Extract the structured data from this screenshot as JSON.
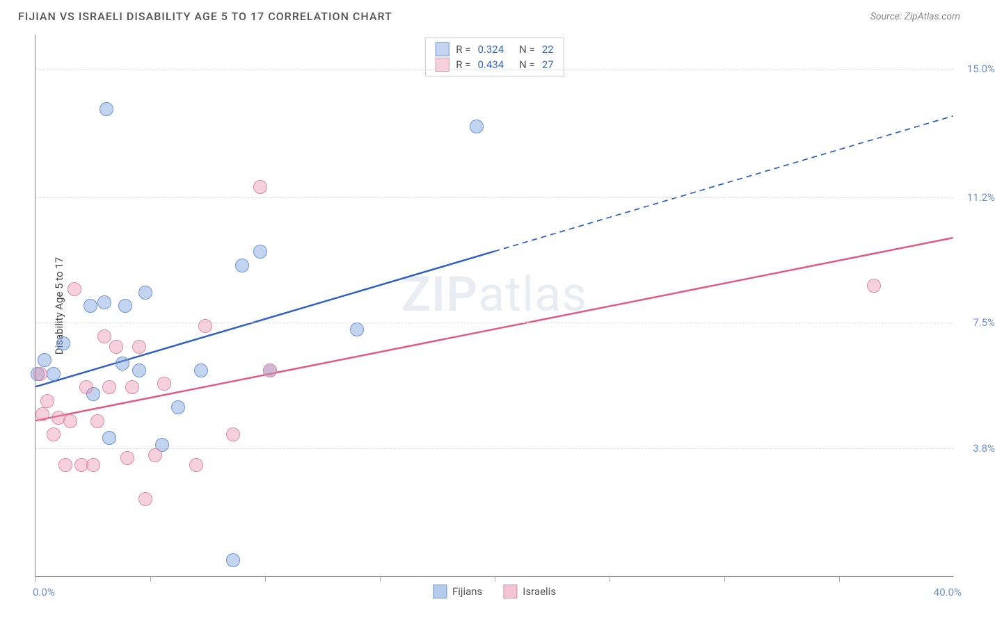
{
  "title": "FIJIAN VS ISRAELI DISABILITY AGE 5 TO 17 CORRELATION CHART",
  "source": "Source: ZipAtlas.com",
  "y_axis_title": "Disability Age 5 to 17",
  "watermark_zip": "ZIP",
  "watermark_atlas": "atlas",
  "chart": {
    "type": "scatter",
    "background_color": "#ffffff",
    "grid_color": "#dddddd",
    "xlim": [
      0,
      40
    ],
    "ylim": [
      0,
      16
    ],
    "x_min_label": "0.0%",
    "x_max_label": "40.0%",
    "x_ticks_pct": [
      0,
      5,
      10,
      15,
      20,
      25,
      30,
      35
    ],
    "y_gridlines": [
      {
        "val": 3.8,
        "label": "3.8%"
      },
      {
        "val": 7.5,
        "label": "7.5%"
      },
      {
        "val": 11.2,
        "label": "11.2%"
      },
      {
        "val": 15.0,
        "label": "15.0%"
      }
    ],
    "axis_label_color": "#6b8fd6",
    "axis_title_color": "#444444",
    "point_radius": 10,
    "series": [
      {
        "name": "Fijians",
        "color_fill": "rgba(120,160,220,0.45)",
        "color_stroke": "#6b93d6",
        "trend_color": "#2f61c4",
        "trend_width": 2.5,
        "R": 0.324,
        "N": 22,
        "trend": {
          "x1": 0,
          "y1": 5.6,
          "x2": 20,
          "y2": 9.6,
          "ext_x2": 40,
          "ext_y2": 13.6
        },
        "points": [
          {
            "x": 0.1,
            "y": 6.0
          },
          {
            "x": 0.4,
            "y": 6.4
          },
          {
            "x": 0.8,
            "y": 6.0
          },
          {
            "x": 1.2,
            "y": 6.9
          },
          {
            "x": 2.5,
            "y": 5.4
          },
          {
            "x": 2.4,
            "y": 8.0
          },
          {
            "x": 3.0,
            "y": 8.1
          },
          {
            "x": 3.1,
            "y": 13.8
          },
          {
            "x": 3.2,
            "y": 4.1
          },
          {
            "x": 3.8,
            "y": 6.3
          },
          {
            "x": 3.9,
            "y": 8.0
          },
          {
            "x": 4.5,
            "y": 6.1
          },
          {
            "x": 4.8,
            "y": 8.4
          },
          {
            "x": 5.5,
            "y": 3.9
          },
          {
            "x": 6.2,
            "y": 5.0
          },
          {
            "x": 7.2,
            "y": 6.1
          },
          {
            "x": 8.6,
            "y": 0.5
          },
          {
            "x": 9.0,
            "y": 9.2
          },
          {
            "x": 9.8,
            "y": 9.6
          },
          {
            "x": 10.2,
            "y": 6.1
          },
          {
            "x": 14.0,
            "y": 7.3
          },
          {
            "x": 19.2,
            "y": 13.3
          }
        ]
      },
      {
        "name": "Israelis",
        "color_fill": "rgba(230,140,170,0.40)",
        "color_stroke": "#e28aa6",
        "trend_color": "#e05a88",
        "trend_width": 2.5,
        "R": 0.434,
        "N": 27,
        "trend": {
          "x1": 0,
          "y1": 4.6,
          "x2": 40,
          "y2": 10.0
        },
        "points": [
          {
            "x": 0.2,
            "y": 6.0
          },
          {
            "x": 0.3,
            "y": 4.8
          },
          {
            "x": 0.5,
            "y": 5.2
          },
          {
            "x": 0.8,
            "y": 4.2
          },
          {
            "x": 1.0,
            "y": 4.7
          },
          {
            "x": 1.3,
            "y": 3.3
          },
          {
            "x": 1.5,
            "y": 4.6
          },
          {
            "x": 1.7,
            "y": 8.5
          },
          {
            "x": 2.0,
            "y": 3.3
          },
          {
            "x": 2.2,
            "y": 5.6
          },
          {
            "x": 2.5,
            "y": 3.3
          },
          {
            "x": 2.7,
            "y": 4.6
          },
          {
            "x": 3.0,
            "y": 7.1
          },
          {
            "x": 3.2,
            "y": 5.6
          },
          {
            "x": 3.5,
            "y": 6.8
          },
          {
            "x": 4.0,
            "y": 3.5
          },
          {
            "x": 4.2,
            "y": 5.6
          },
          {
            "x": 4.5,
            "y": 6.8
          },
          {
            "x": 4.8,
            "y": 2.3
          },
          {
            "x": 5.2,
            "y": 3.6
          },
          {
            "x": 5.6,
            "y": 5.7
          },
          {
            "x": 7.0,
            "y": 3.3
          },
          {
            "x": 7.4,
            "y": 7.4
          },
          {
            "x": 8.6,
            "y": 4.2
          },
          {
            "x": 9.8,
            "y": 11.5
          },
          {
            "x": 10.2,
            "y": 6.1
          },
          {
            "x": 36.5,
            "y": 8.6
          }
        ]
      }
    ],
    "legend_bottom": [
      {
        "label": "Fijians",
        "swatch": "rgba(120,160,220,0.55)",
        "border": "#6b93d6"
      },
      {
        "label": "Israelis",
        "swatch": "rgba(230,140,170,0.50)",
        "border": "#e28aa6"
      }
    ]
  }
}
